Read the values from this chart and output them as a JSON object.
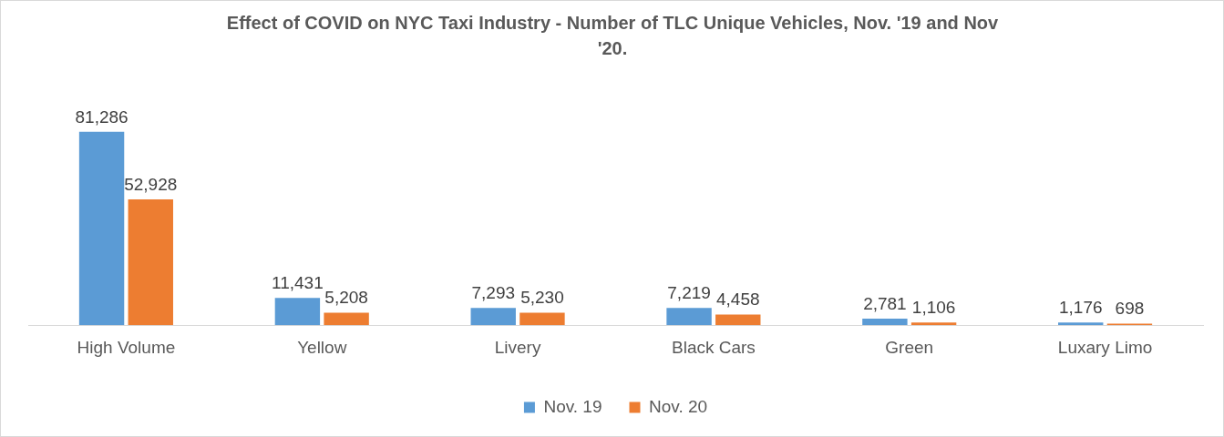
{
  "chart_data": {
    "type": "bar",
    "title": "Effect of COVID on NYC Taxi Industry - Number of TLC Unique Vehicles, Nov. '19 and Nov '20.",
    "categories": [
      "High Volume",
      "Yellow",
      "Livery",
      "Black Cars",
      "Green",
      "Luxary Limo"
    ],
    "series": [
      {
        "name": "Nov. 19",
        "color": "#5b9bd5",
        "values": [
          81286,
          11431,
          7293,
          7219,
          2781,
          1176
        ],
        "value_labels": [
          "81,286",
          "11,431",
          "7,293",
          "7,219",
          "2,781",
          "1,176"
        ]
      },
      {
        "name": "Nov. 20",
        "color": "#ed7d31",
        "values": [
          52928,
          5208,
          5230,
          4458,
          1106,
          698
        ],
        "value_labels": [
          "52,928",
          "5,208",
          "5,230",
          "4,458",
          "1,106",
          "698"
        ]
      }
    ],
    "tick_labels": "x",
    "grid": false,
    "legend": "bottom"
  }
}
